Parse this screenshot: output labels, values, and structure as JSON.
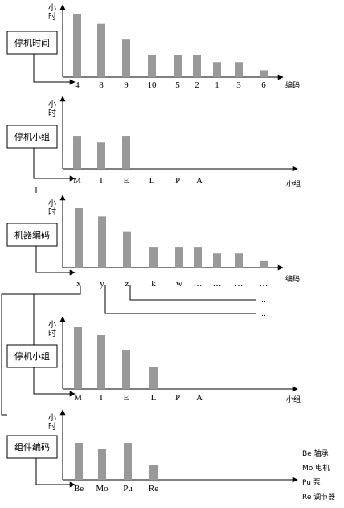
{
  "panels": [
    {
      "id": "downtime",
      "box_label": "停机时间",
      "y_label": "小时",
      "x_label": "编码",
      "categories": [
        "4",
        "8",
        "9",
        "10",
        "5",
        "2",
        "1",
        "3",
        "6"
      ],
      "values": [
        10,
        8.5,
        6,
        3.5,
        3.5,
        3.5,
        2.4,
        2.4,
        1.1
      ]
    },
    {
      "id": "downtime-group-1",
      "box_label": "停机小组",
      "y_label": "小时",
      "x_label": "小组",
      "categories": [
        "M",
        "I",
        "E",
        "L",
        "P",
        "A"
      ],
      "values": [
        6.5,
        5.2,
        6.5,
        0,
        0,
        0
      ]
    },
    {
      "id": "machine-code",
      "box_label": "机器编码",
      "y_label": "小时",
      "x_label": "编码",
      "categories": [
        "x",
        "y",
        "z",
        "k",
        "w",
        "…",
        "…",
        "…",
        "…"
      ],
      "values": [
        10,
        8.6,
        6,
        3.5,
        3.5,
        3.5,
        2.4,
        2.4,
        1.1
      ]
    },
    {
      "id": "downtime-group-2",
      "box_label": "停机小组",
      "y_label": "小时",
      "x_label": "小组",
      "categories": [
        "M",
        "I",
        "E",
        "L",
        "P",
        "A"
      ],
      "values": [
        10,
        8.7,
        6.3,
        3.6,
        0,
        0
      ]
    },
    {
      "id": "component-code",
      "box_label": "组件编码",
      "y_label": "小时",
      "x_label": "",
      "categories": [
        "Be",
        "Mo",
        "Pu",
        "Re"
      ],
      "values": [
        6.3,
        5.3,
        6.3,
        2.6
      ]
    }
  ],
  "ellipsis_rows": [
    "…",
    "…"
  ],
  "legend": [
    {
      "code": "Be",
      "name": "轴承"
    },
    {
      "code": "Mo",
      "name": "电机"
    },
    {
      "code": "Pu",
      "name": "泵"
    },
    {
      "code": "Re",
      "name": "调节器"
    }
  ],
  "colors": {
    "bar": "#999999",
    "line": "#000000"
  }
}
